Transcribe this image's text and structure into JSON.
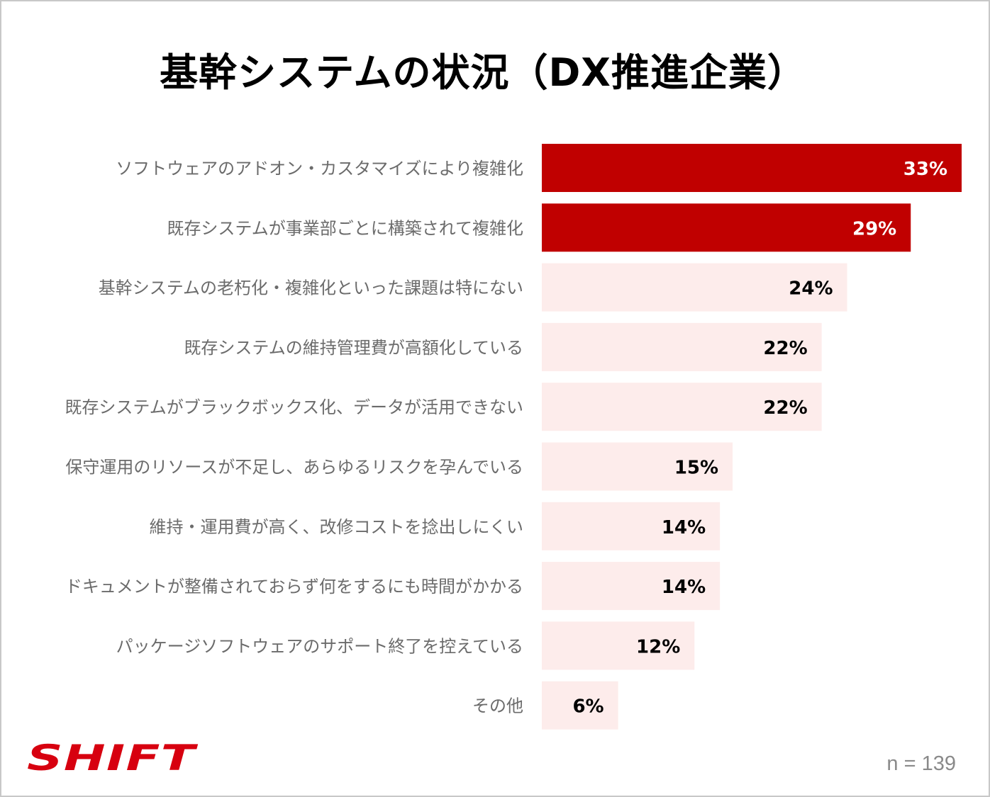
{
  "chart_data": {
    "type": "bar",
    "orientation": "horizontal",
    "title": "基幹システムの状況（DX推進企業）",
    "categories": [
      "ソフトウェアのアドオン・カスタマイズにより複雑化",
      "既存システムが事業部ごとに構築されて複雑化",
      "基幹システムの老朽化・複雑化といった課題は特にない",
      "既存システムの維持管理費が高額化している",
      "既存システムがブラックボックス化、データが活用できない",
      "保守運用のリソースが不足し、あらゆるリスクを孕んでいる",
      "維持・運用費が高く、改修コストを捻出しにくい",
      "ドキュメントが整備されておらず何をするにも時間がかかる",
      "パッケージソフトウェアのサポート終了を控えている",
      "その他"
    ],
    "values": [
      33,
      29,
      24,
      22,
      22,
      15,
      14,
      14,
      12,
      6
    ],
    "value_labels": [
      "33%",
      "29%",
      "24%",
      "22%",
      "22%",
      "15%",
      "14%",
      "14%",
      "12%",
      "6%"
    ],
    "highlighted": [
      true,
      true,
      false,
      false,
      false,
      false,
      false,
      false,
      false,
      false
    ],
    "colors": {
      "highlight_bar": "#c00000",
      "normal_bar": "#fdeceb",
      "highlight_text": "#ffffff",
      "normal_text": "#000000"
    },
    "xlim": [
      0,
      33
    ],
    "grid": false,
    "xlabel": "",
    "ylabel": ""
  },
  "logo": {
    "text": "SHIFT",
    "color": "#d7000f"
  },
  "sample_size": "n = 139"
}
